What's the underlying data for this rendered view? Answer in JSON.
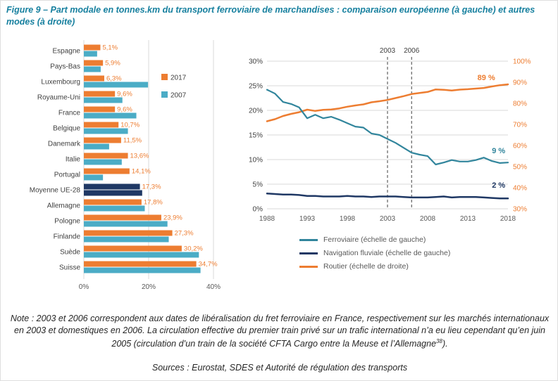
{
  "figure": {
    "title": "Figure 9 – Part modale en tonnes.km du transport ferroviaire de marchandises : comparaison européenne (à gauche) et autres modes (à droite)"
  },
  "note": {
    "body": "Note : 2003 et 2006 correspondent aux dates de libéralisation du fret ferroviaire en France, respectivement sur les marchés internationaux en 2003 et domestiques en 2006. La circulation effective du premier train privé sur un trafic international n’a eu lieu cependant qu’en juin 2005 (circulation d’un train de la société CFTA Cargo entre la Meuse et l’Allemagne",
    "footnote_marker": "38",
    "tail": ")."
  },
  "sources": "Sources : Eurostat, SDES et Autorité de régulation des transports",
  "colors": {
    "title": "#17809F",
    "orange": "#ED7D31",
    "bar_teal": "#4BACC6",
    "line_teal": "#31859C",
    "navy": "#1F3864",
    "grid": "#D9D9D9",
    "axis_text": "#595959",
    "text": "#404040"
  },
  "chart_data": [
    {
      "type": "bar",
      "orientation": "horizontal",
      "title": "",
      "xlabel": "",
      "ylabel": "",
      "xlim": [
        0,
        40
      ],
      "x_ticks": [
        "0%",
        "20%",
        "40%"
      ],
      "x_tick_values": [
        0,
        20,
        40
      ],
      "categories": [
        "Espagne",
        "Pays-Bas",
        "Luxembourg",
        "Royaume-Uni",
        "France",
        "Belgique",
        "Danemark",
        "Italie",
        "Portugal",
        "Moyenne UE-28",
        "Allemagne",
        "Pologne",
        "Finlande",
        "Suède",
        "Suisse"
      ],
      "series": [
        {
          "name": "2017",
          "color": "#ED7D31",
          "values": [
            5.1,
            5.9,
            6.3,
            9.6,
            9.6,
            10.7,
            11.5,
            13.6,
            14.1,
            17.3,
            17.8,
            23.9,
            27.3,
            30.2,
            34.7
          ]
        },
        {
          "name": "2007",
          "color": "#4BACC6",
          "values": [
            4.1,
            5.2,
            19.8,
            11.9,
            16.2,
            13.6,
            7.8,
            11.7,
            5.9,
            18.0,
            18.8,
            25.8,
            26.2,
            35.5,
            36.0
          ]
        }
      ],
      "value_labels": [
        "5,1%",
        "5,9%",
        "6,3%",
        "9,6%",
        "9,6%",
        "10,7%",
        "11,5%",
        "13,6%",
        "14,1%",
        "17,3%",
        "17,8%",
        "23,9%",
        "27,3%",
        "30,2%",
        "34,7%"
      ],
      "highlight_category": "Moyenne UE-28",
      "highlight_color": "#1F3864",
      "legend_position": "inside-top-right"
    },
    {
      "type": "line",
      "title": "",
      "x": [
        1988,
        1989,
        1990,
        1991,
        1992,
        1993,
        1994,
        1995,
        1996,
        1997,
        1998,
        1999,
        2000,
        2001,
        2002,
        2003,
        2004,
        2005,
        2006,
        2007,
        2008,
        2009,
        2010,
        2011,
        2012,
        2013,
        2014,
        2015,
        2016,
        2017,
        2018
      ],
      "x_ticks": [
        "1988",
        "1993",
        "1998",
        "2003",
        "2008",
        "2013",
        "2018"
      ],
      "x_tick_values": [
        1988,
        1993,
        1998,
        2003,
        2008,
        2013,
        2018
      ],
      "left_axis": {
        "min": 0,
        "max": 30,
        "ticks": [
          "0%",
          "5%",
          "10%",
          "15%",
          "20%",
          "25%",
          "30%"
        ],
        "tick_values": [
          0,
          5,
          10,
          15,
          20,
          25,
          30
        ]
      },
      "right_axis": {
        "min": 30,
        "max": 100,
        "ticks": [
          "30%",
          "40%",
          "50%",
          "60%",
          "70%",
          "80%",
          "90%",
          "100%"
        ],
        "tick_values": [
          30,
          40,
          50,
          60,
          70,
          80,
          90,
          100
        ],
        "color": "#ED7D31"
      },
      "vlines": [
        {
          "x": 2003,
          "label": "2003"
        },
        {
          "x": 2006,
          "label": "2006"
        }
      ],
      "series": [
        {
          "key": "routier",
          "name": "Routier (échelle de droite)",
          "axis": "right",
          "color": "#ED7D31",
          "width": 2.5,
          "values": [
            71.5,
            72.5,
            74.0,
            75.0,
            75.8,
            77.0,
            76.4,
            76.9,
            77.1,
            77.6,
            78.4,
            79.0,
            79.5,
            80.5,
            81.0,
            81.6,
            82.5,
            83.4,
            84.4,
            84.9,
            85.4,
            86.6,
            86.4,
            86.1,
            86.5,
            86.7,
            87.0,
            87.3,
            88.0,
            88.6,
            89.0
          ],
          "label": {
            "text": "89 %",
            "x": 2014.2,
            "value": 91
          }
        },
        {
          "key": "ferroviaire",
          "name": "Ferroviaire (échelle de gauche)",
          "axis": "left",
          "color": "#31859C",
          "width": 2.2,
          "values": [
            24.2,
            23.4,
            21.7,
            21.3,
            20.6,
            18.4,
            19.1,
            18.4,
            18.7,
            18.1,
            17.4,
            16.7,
            16.5,
            15.3,
            15.0,
            14.2,
            13.4,
            12.4,
            11.4,
            11.0,
            10.7,
            9.0,
            9.4,
            9.9,
            9.6,
            9.6,
            9.9,
            10.4,
            9.7,
            9.3,
            9.4
          ],
          "label": {
            "text": "9 %",
            "x": 2016,
            "value": 11.3
          }
        },
        {
          "key": "navigation",
          "name": "Navigation fluviale (échelle de gauche)",
          "axis": "left",
          "color": "#1F3864",
          "width": 2.5,
          "values": [
            3.1,
            3.0,
            2.9,
            2.9,
            2.8,
            2.6,
            2.6,
            2.5,
            2.5,
            2.5,
            2.6,
            2.5,
            2.5,
            2.4,
            2.5,
            2.5,
            2.5,
            2.4,
            2.3,
            2.3,
            2.3,
            2.4,
            2.5,
            2.3,
            2.4,
            2.4,
            2.4,
            2.3,
            2.2,
            2.1,
            2.1
          ],
          "label": {
            "text": "2 %",
            "x": 2016,
            "value": 4.3
          }
        }
      ],
      "legend": [
        "Ferroviaire (échelle de gauche)",
        "Navigation fluviale (échelle de gauche)",
        "Routier (échelle de droite)"
      ],
      "legend_position": "below"
    }
  ]
}
